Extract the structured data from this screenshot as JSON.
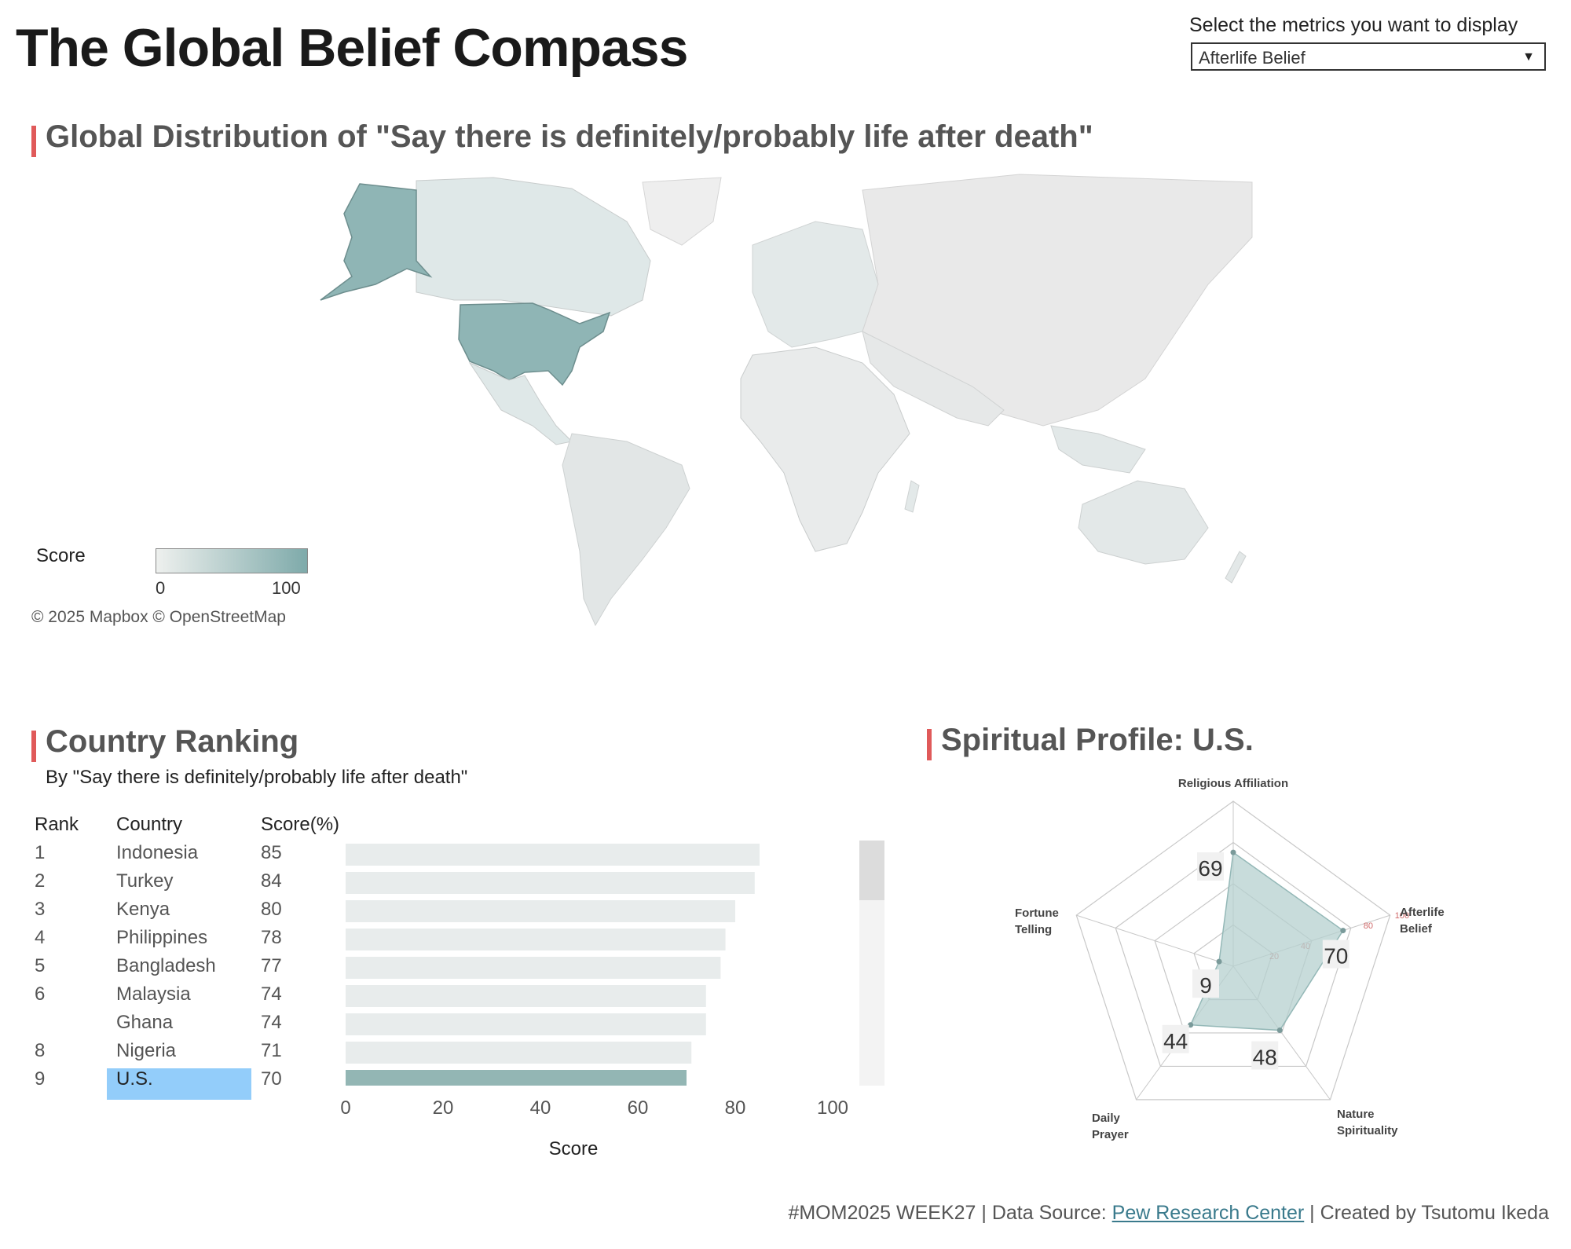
{
  "header": {
    "title": "The Global Belief Compass",
    "metric_label": "Select the metrics you want to display",
    "metric_selected": "Afterlife Belief"
  },
  "map": {
    "title": "Global Distribution of \"Say there is definitely/probably life after death\"",
    "legend_label": "Score",
    "legend_min": "0",
    "legend_max": "100",
    "attribution": "© 2025 Mapbox  © OpenStreetMap",
    "colors": {
      "low": "#eef0ee",
      "high": "#7eaaaa",
      "highlight": "#8fb5b5",
      "base": "#e9e9e9"
    },
    "highlighted_country": "U.S."
  },
  "ranking": {
    "title": "Country Ranking",
    "subtitle": "By \"Say there is definitely/probably life after death\"",
    "col_rank": "Rank",
    "col_country": "Country",
    "col_score": "Score(%)",
    "rows": [
      {
        "rank": "1",
        "country": "Indonesia",
        "score": "85"
      },
      {
        "rank": "2",
        "country": "Turkey",
        "score": "84"
      },
      {
        "rank": "3",
        "country": "Kenya",
        "score": "80"
      },
      {
        "rank": "4",
        "country": "Philippines",
        "score": "78"
      },
      {
        "rank": "5",
        "country": "Bangladesh",
        "score": "77"
      },
      {
        "rank": "6",
        "country": "Malaysia",
        "score": "74"
      },
      {
        "rank": "",
        "country": "Ghana",
        "score": "74"
      },
      {
        "rank": "8",
        "country": "Nigeria",
        "score": "71"
      },
      {
        "rank": "9",
        "country": "U.S.",
        "score": "70"
      }
    ]
  },
  "chart_data": [
    {
      "type": "bar",
      "orientation": "horizontal",
      "categories": [
        "Indonesia",
        "Turkey",
        "Kenya",
        "Philippines",
        "Bangladesh",
        "Malaysia",
        "Ghana",
        "Nigeria",
        "U.S."
      ],
      "values": [
        85,
        84,
        80,
        78,
        77,
        74,
        74,
        71,
        70
      ],
      "xlabel": "Score",
      "xlim": [
        0,
        100
      ],
      "xticks": [
        "0",
        "20",
        "40",
        "60",
        "80",
        "100"
      ],
      "selected": "U.S.",
      "colors": {
        "bar": "#e8ecec",
        "selected": "#93b6b4"
      }
    },
    {
      "type": "radar",
      "title": "Spiritual Profile: U.S.",
      "axes": [
        "Religious Affiliation",
        "Afterlife Belief",
        "Nature Spirituality",
        "Daily Prayer",
        "Fortune Telling"
      ],
      "values": [
        69,
        70,
        48,
        44,
        9
      ],
      "value_labels": [
        "69",
        "70",
        "48",
        "44",
        "9"
      ],
      "rlim": [
        0,
        100
      ],
      "ring_labels": [
        "20",
        "40",
        "80",
        "100"
      ],
      "colors": {
        "fill": "#b5d0cf",
        "stroke": "#94b8b7",
        "grid": "#c8c8c8",
        "ring_label": "#d06a6a"
      }
    }
  ],
  "footer": {
    "prefix": "#MOM2025 WEEK27 | Data Source: ",
    "link": "Pew Research Center",
    "suffix": " | Created by Tsutomu Ikeda"
  }
}
